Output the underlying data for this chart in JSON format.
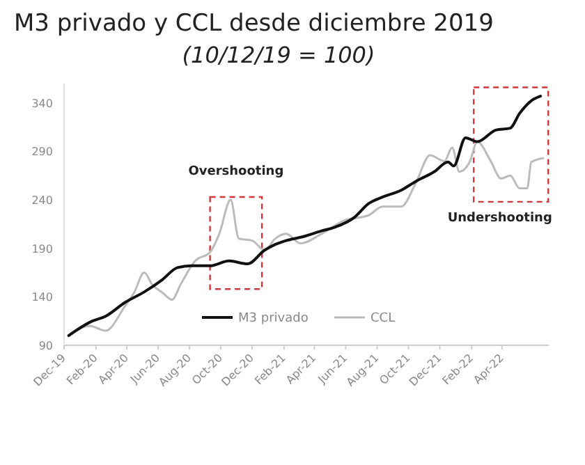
{
  "chart_data": {
    "type": "line",
    "title": "M3 privado y CCL desde diciembre 2019",
    "subtitle": "(10/12/19 = 100)",
    "xlim": [
      "2019-12-01",
      "2022-07-01"
    ],
    "xticks": [
      {
        "value": "2019-12-01",
        "label": "Dec-19"
      },
      {
        "value": "2020-02-01",
        "label": "Feb-20"
      },
      {
        "value": "2020-04-01",
        "label": "Apr-20"
      },
      {
        "value": "2020-06-01",
        "label": "Jun-20"
      },
      {
        "value": "2020-08-01",
        "label": "Aug-20"
      },
      {
        "value": "2020-10-01",
        "label": "Oct-20"
      },
      {
        "value": "2020-12-01",
        "label": "Dec-20"
      },
      {
        "value": "2021-02-01",
        "label": "Feb-21"
      },
      {
        "value": "2021-04-01",
        "label": "Apr-21"
      },
      {
        "value": "2021-06-01",
        "label": "Jun-21"
      },
      {
        "value": "2021-08-01",
        "label": "Aug-21"
      },
      {
        "value": "2021-10-01",
        "label": "Oct-21"
      },
      {
        "value": "2021-12-01",
        "label": "Dec-21"
      },
      {
        "value": "2022-02-01",
        "label": "Feb-22"
      },
      {
        "value": "2022-04-01",
        "label": "Apr-22"
      }
    ],
    "ylim": [
      90,
      360
    ],
    "yticks": [
      90,
      140,
      190,
      240,
      290,
      340
    ],
    "grid": false,
    "legend": "bottom",
    "line_style": "solid",
    "marker": "none",
    "annotations": [
      "Overshooting",
      "Undershooting"
    ],
    "series": [
      {
        "name": "M3 privado",
        "color": "#111111",
        "x": [
          "2019-12-10",
          "2020-01-25",
          "2020-02-20",
          "2020-03-28",
          "2020-05-05",
          "2020-06-10",
          "2020-07-08",
          "2020-08-05",
          "2020-09-10",
          "2020-10-17",
          "2020-11-22",
          "2020-12-25",
          "2021-01-15",
          "2021-02-05",
          "2021-03-10",
          "2021-04-15",
          "2021-05-12",
          "2021-06-18",
          "2021-07-15",
          "2021-08-12",
          "2021-09-17",
          "2021-10-15",
          "2021-11-20",
          "2021-12-17",
          "2021-12-28",
          "2022-01-20",
          "2022-02-12",
          "2022-03-20",
          "2022-04-17",
          "2022-05-05",
          "2022-05-30",
          "2022-06-15"
        ],
        "values": [
          100,
          115,
          120,
          134,
          145,
          158,
          170,
          172,
          172,
          177,
          174,
          188,
          194,
          198,
          202,
          208,
          212,
          222,
          236,
          243,
          250,
          259,
          269,
          279,
          275,
          304,
          300,
          312,
          314,
          329,
          343,
          347
        ]
      },
      {
        "name": "CCL",
        "color": "#bbbbbb",
        "x": [
          "2019-12-10",
          "2020-01-20",
          "2020-02-20",
          "2020-03-28",
          "2020-04-15",
          "2020-05-05",
          "2020-05-20",
          "2020-06-10",
          "2020-06-28",
          "2020-07-15",
          "2020-08-12",
          "2020-09-10",
          "2020-09-28",
          "2020-10-20",
          "2020-11-05",
          "2020-12-01",
          "2020-12-25",
          "2021-01-15",
          "2021-02-05",
          "2021-03-05",
          "2021-04-15",
          "2021-05-30",
          "2021-07-15",
          "2021-08-12",
          "2021-09-17",
          "2021-10-15",
          "2021-11-12",
          "2021-12-10",
          "2021-12-25",
          "2022-01-08",
          "2022-01-28",
          "2022-02-12",
          "2022-03-10",
          "2022-03-30",
          "2022-04-17",
          "2022-05-05",
          "2022-05-20",
          "2022-05-28",
          "2022-06-20"
        ],
        "values": [
          100,
          110,
          105,
          130,
          144,
          165,
          153,
          144,
          137,
          153,
          177,
          186,
          205,
          240,
          200,
          198,
          188,
          200,
          205,
          195,
          205,
          219,
          224,
          233,
          233,
          257,
          286,
          280,
          294,
          269,
          279,
          300,
          280,
          262,
          265,
          252,
          252,
          279,
          283
        ]
      }
    ]
  }
}
